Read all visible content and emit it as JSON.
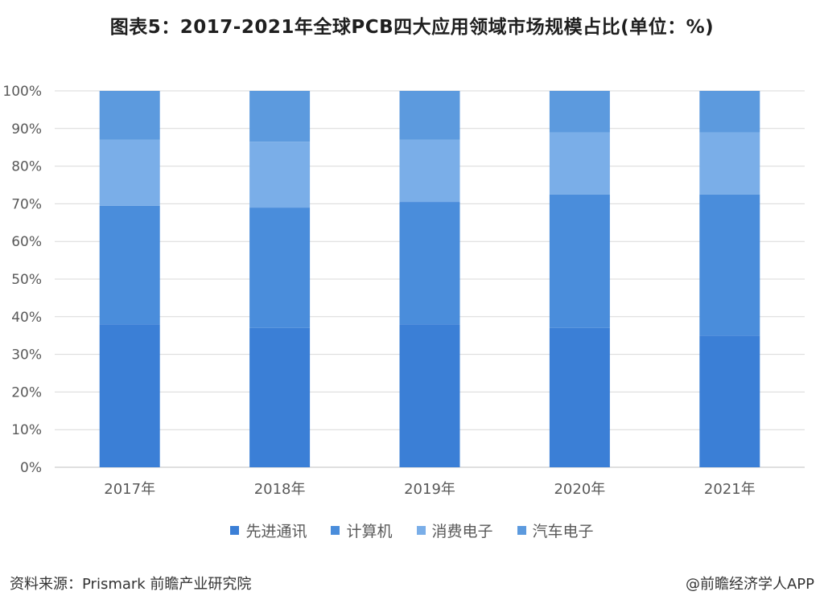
{
  "title": "图表5：2017-2021年全球PCB四大应用领域市场规模占比(单位：%)",
  "source": "资料来源：Prismark 前瞻产业研究院",
  "brand": "@前瞻经济学人APP",
  "chart_data": {
    "type": "bar",
    "stacked": true,
    "categories": [
      "2017年",
      "2018年",
      "2019年",
      "2020年",
      "2021年"
    ],
    "y_ticks": [
      "0%",
      "10%",
      "20%",
      "30%",
      "40%",
      "50%",
      "60%",
      "70%",
      "80%",
      "90%",
      "100%"
    ],
    "ylim": [
      0,
      100
    ],
    "grid": true,
    "legend_position": "bottom",
    "series": [
      {
        "name": "先进通讯",
        "color": "#3b7fd6",
        "values": [
          38,
          37,
          38,
          37,
          35
        ]
      },
      {
        "name": "计算机",
        "color": "#4a8ddb",
        "values": [
          31.5,
          32,
          32.5,
          35.5,
          37.5
        ]
      },
      {
        "name": "消费电子",
        "color": "#7aaee8",
        "values": [
          17.5,
          17.5,
          16.5,
          16.5,
          16.5
        ]
      },
      {
        "name": "汽车电子",
        "color": "#5c9ade",
        "values": [
          13,
          13.5,
          13,
          11,
          11
        ]
      }
    ]
  }
}
